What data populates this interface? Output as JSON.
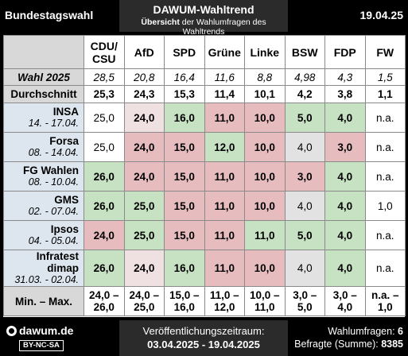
{
  "header": {
    "left_title": "Bundestagswahl",
    "center_title": "DAWUM-Wahltrend",
    "subtitle_bold": "Übersicht",
    "subtitle_rest": " der Wahlumfragen des Wahltrends",
    "date": "19.04.25"
  },
  "table": {
    "parties": [
      "CDU/ CSU",
      "AfD",
      "SPD",
      "Grüne",
      "Linke",
      "BSW",
      "FDP",
      "FW"
    ],
    "wahl": {
      "label": "Wahl 2025",
      "values": [
        "28,5",
        "20,8",
        "16,4",
        "11,6",
        "8,8",
        "4,98",
        "4,3",
        "1,5"
      ]
    },
    "avg": {
      "label": "Durchschnitt",
      "values": [
        "25,3",
        "24,3",
        "15,3",
        "11,4",
        "10,1",
        "4,2",
        "3,8",
        "1,1"
      ]
    },
    "polls": [
      {
        "name": "INSA",
        "date": "14. - 17.04.",
        "values": [
          "25,0",
          "24,0",
          "16,0",
          "11,0",
          "10,0",
          "5,0",
          "4,0",
          "n.a."
        ]
      },
      {
        "name": "Forsa",
        "date": "08. - 14.04.",
        "values": [
          "25,0",
          "24,0",
          "15,0",
          "12,0",
          "10,0",
          "4,0",
          "3,0",
          "n.a."
        ]
      },
      {
        "name": "FG Wahlen",
        "date": "08. - 10.04.",
        "values": [
          "26,0",
          "24,0",
          "15,0",
          "11,0",
          "10,0",
          "3,0",
          "4,0",
          "n.a."
        ]
      },
      {
        "name": "GMS",
        "date": "02. - 07.04.",
        "values": [
          "26,0",
          "25,0",
          "15,0",
          "11,0",
          "10,0",
          "4,0",
          "4,0",
          "1,0"
        ]
      },
      {
        "name": "Ipsos",
        "date": "04. - 05.04.",
        "values": [
          "24,0",
          "25,0",
          "15,0",
          "11,0",
          "11,0",
          "5,0",
          "4,0",
          "n.a."
        ]
      },
      {
        "name": "Infratest dimap",
        "date": "31.03. - 02.04.",
        "values": [
          "26,0",
          "24,0",
          "16,0",
          "11,0",
          "10,0",
          "4,0",
          "4,0",
          "n.a."
        ]
      }
    ],
    "minmax": {
      "label": "Min. – Max.",
      "values": [
        "24,0 – 26,0",
        "24,0 – 25,0",
        "15,0 – 16,0",
        "11,0 – 12,0",
        "10,0 – 11,0",
        "3,0 – 5,0",
        "3,0 – 4,0",
        "n.a. – 1,0"
      ]
    }
  },
  "footer": {
    "site": "dawum.de",
    "license": "BY-NC-SA",
    "period_label": "Veröffentlichungszeitraum:",
    "period_value": "03.04.2025 - 19.04.2025",
    "polls_label": "Wahlumfragen: ",
    "polls_count": "6",
    "respondents_label": "Befragte (Summe): ",
    "respondents_count": "8385"
  },
  "colors": {
    "above_avg": "#c6e2c2",
    "below_avg": "#e6bcbf",
    "slightly_below": "#efe0e1",
    "neutral": "#e2e2e2",
    "institute_bg": "#dde6ef"
  }
}
